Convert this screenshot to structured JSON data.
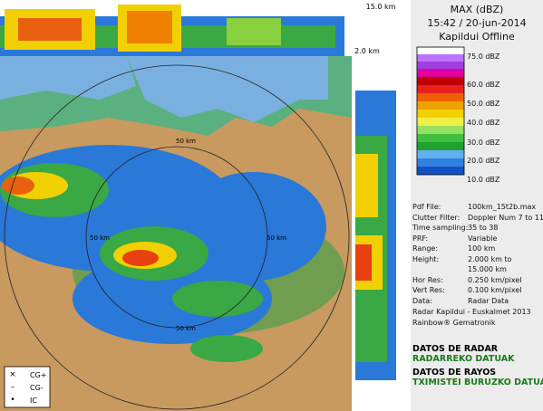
{
  "header": {
    "title": "MAX (dBZ)",
    "time": "15:42 / 20-jun-2014",
    "station": "Kapildui Offline"
  },
  "scale": {
    "labels": [
      "75.0 dBZ",
      "60.0 dBZ",
      "50.0 dBZ",
      "40.0 dBZ",
      "30.0 dBZ",
      "20.0 dBZ",
      "10.0 dBZ"
    ]
  },
  "info": {
    "rows": [
      [
        "Pdf File:",
        "100km_15t2b.max"
      ],
      [
        "Clutter Filter:",
        "Doppler Num 7 to 11"
      ],
      [
        "Time sampling:",
        "35 to 38"
      ],
      [
        "PRF:",
        "Variable"
      ],
      [
        "Range:",
        "100 km"
      ],
      [
        "Height:",
        "2.000 km to"
      ],
      [
        "",
        "15.000 km"
      ],
      [
        "Hor Res:",
        "0.250 km/pixel"
      ],
      [
        "Vert Res:",
        "0.100 km/pixel"
      ],
      [
        "Data:",
        "Radar Data"
      ]
    ],
    "credit": "Radar Kapildui - Euskalmet 2013",
    "vendor": "Rainbow® Gematronik"
  },
  "footer": [
    "DATOS DE RADAR",
    "RADARREKO DATUAK",
    "DATOS DE RAYOS",
    "TXIMISTEI BURUZKO DATUAK"
  ],
  "map": {
    "top_height": "15.0 km",
    "side_height": "2.0 km",
    "ring_labels": [
      "50 km",
      "50 km",
      "50 km",
      "50 km"
    ],
    "legend": [
      "CG+",
      "CG-",
      "IC"
    ]
  }
}
